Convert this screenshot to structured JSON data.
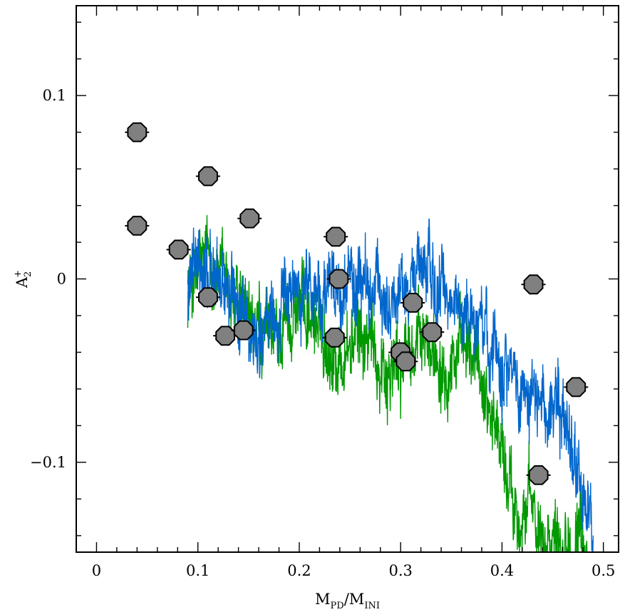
{
  "chart_data": {
    "type": "scatter",
    "title": "",
    "xlabel": {
      "main1": "M",
      "sub1": "PD",
      "sep": "/",
      "main2": "M",
      "sub2": "INI"
    },
    "ylabel": {
      "main": "A",
      "sub": "2",
      "sup": "+"
    },
    "xlim": [
      -0.02,
      0.515
    ],
    "ylim": [
      -0.149,
      0.149
    ],
    "x_ticks": [
      {
        "value": 0,
        "label": "0"
      },
      {
        "value": 0.1,
        "label": "0.1"
      },
      {
        "value": 0.2,
        "label": "0.2"
      },
      {
        "value": 0.3,
        "label": "0.3"
      },
      {
        "value": 0.4,
        "label": "0.4"
      },
      {
        "value": 0.5,
        "label": "0.5"
      }
    ],
    "y_ticks": [
      {
        "value": -0.1,
        "label": "−0.1"
      },
      {
        "value": 0,
        "label": "0"
      },
      {
        "value": 0.1,
        "label": "0.1"
      }
    ],
    "x_minor_step": 0.02,
    "y_minor_step": 0.02,
    "grid": false,
    "colors": {
      "marker_fill": "#808080",
      "marker_edge": "#000000",
      "green_curve": "#009900",
      "blue_curve": "#0066cc"
    },
    "points": [
      {
        "x": 0.04,
        "y": 0.08
      },
      {
        "x": 0.04,
        "y": 0.029
      },
      {
        "x": 0.081,
        "y": 0.016
      },
      {
        "x": 0.11,
        "y": 0.056
      },
      {
        "x": 0.11,
        "y": -0.01
      },
      {
        "x": 0.127,
        "y": -0.031
      },
      {
        "x": 0.145,
        "y": -0.028
      },
      {
        "x": 0.151,
        "y": 0.033
      },
      {
        "x": 0.236,
        "y": 0.023
      },
      {
        "x": 0.239,
        "y": 0.0
      },
      {
        "x": 0.235,
        "y": -0.032
      },
      {
        "x": 0.3,
        "y": -0.04
      },
      {
        "x": 0.305,
        "y": -0.045
      },
      {
        "x": 0.312,
        "y": -0.013
      },
      {
        "x": 0.331,
        "y": -0.029
      },
      {
        "x": 0.431,
        "y": -0.003
      },
      {
        "x": 0.436,
        "y": -0.107
      },
      {
        "x": 0.473,
        "y": -0.059
      }
    ],
    "series": [
      {
        "color": "#009900",
        "x_range": [
          0.09,
          0.485
        ],
        "noise": 0.018,
        "trend": [
          [
            0.09,
            -0.005
          ],
          [
            0.11,
            0.01
          ],
          [
            0.13,
            -0.005
          ],
          [
            0.15,
            -0.03
          ],
          [
            0.175,
            -0.035
          ],
          [
            0.2,
            -0.01
          ],
          [
            0.225,
            -0.03
          ],
          [
            0.24,
            -0.045
          ],
          [
            0.26,
            -0.03
          ],
          [
            0.29,
            -0.05
          ],
          [
            0.32,
            -0.035
          ],
          [
            0.35,
            -0.04
          ],
          [
            0.375,
            -0.045
          ],
          [
            0.395,
            -0.08
          ],
          [
            0.41,
            -0.12
          ],
          [
            0.43,
            -0.13
          ],
          [
            0.46,
            -0.14
          ],
          [
            0.485,
            -0.15
          ]
        ]
      },
      {
        "color": "#0066cc",
        "x_range": [
          0.09,
          0.49
        ],
        "noise": 0.018,
        "trend": [
          [
            0.09,
            -0.005
          ],
          [
            0.11,
            0.005
          ],
          [
            0.13,
            -0.005
          ],
          [
            0.15,
            -0.03
          ],
          [
            0.175,
            -0.025
          ],
          [
            0.2,
            0.0
          ],
          [
            0.225,
            -0.01
          ],
          [
            0.25,
            0.0
          ],
          [
            0.28,
            -0.01
          ],
          [
            0.3,
            -0.01
          ],
          [
            0.32,
            0.01
          ],
          [
            0.34,
            -0.01
          ],
          [
            0.37,
            -0.02
          ],
          [
            0.4,
            -0.04
          ],
          [
            0.42,
            -0.06
          ],
          [
            0.45,
            -0.07
          ],
          [
            0.47,
            -0.09
          ],
          [
            0.49,
            -0.14
          ]
        ]
      }
    ]
  }
}
